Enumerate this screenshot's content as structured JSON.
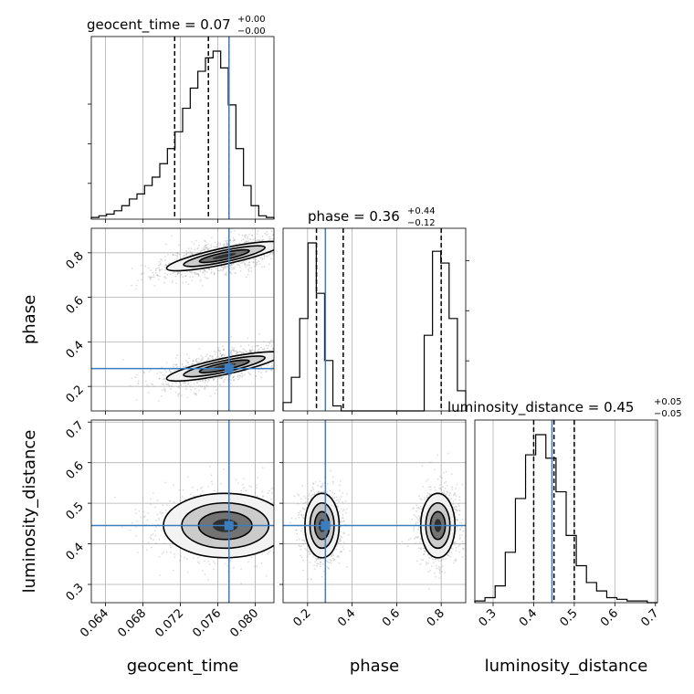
{
  "chart_data": {
    "type": "corner",
    "parameters": [
      "geocent_time",
      "phase",
      "luminosity_distance"
    ],
    "axis_labels": {
      "geocent_time": "geocent_time",
      "phase": "phase",
      "luminosity_distance": "luminosity_distance"
    },
    "titles": {
      "geocent_time": {
        "name": "geocent_time",
        "value": "0.07",
        "plus": "+0.00",
        "minus": "−0.00"
      },
      "phase": {
        "name": "phase",
        "value": "0.36",
        "plus": "+0.44",
        "minus": "−0.12"
      },
      "luminosity_distance": {
        "name": "luminosity_distance",
        "value": "0.45",
        "plus": "+0.05",
        "minus": "−0.05"
      }
    },
    "ranges": {
      "geocent_time": [
        0.0625,
        0.082
      ],
      "phase": [
        0.09,
        0.91
      ],
      "luminosity_distance": [
        0.255,
        0.705
      ]
    },
    "ticks": {
      "geocent_time": [
        "0.064",
        "0.068",
        "0.072",
        "0.076",
        "0.080"
      ],
      "phase": [
        "0.2",
        "0.4",
        "0.6",
        "0.8"
      ],
      "luminosity_distance": [
        "0.3",
        "0.4",
        "0.5",
        "0.6",
        "0.7"
      ]
    },
    "injection": {
      "geocent_time": 0.0772,
      "phase": 0.28,
      "luminosity_distance": 0.445
    },
    "quantiles": {
      "geocent_time": [
        0.0714,
        0.075,
        0.0772
      ],
      "phase": [
        0.24,
        0.36,
        0.8
      ],
      "luminosity_distance": [
        0.4,
        0.45,
        0.5
      ]
    },
    "histograms": {
      "geocent_time": [
        1,
        2,
        3,
        5,
        8,
        12,
        15,
        20,
        25,
        33,
        42,
        52,
        66,
        78,
        88,
        96,
        100,
        90,
        68,
        42,
        20,
        8,
        2,
        1
      ],
      "phase": [
        5,
        20,
        55,
        100,
        70,
        30,
        3,
        0,
        0,
        0,
        0,
        0,
        0,
        0,
        0,
        0,
        0,
        45,
        95,
        88,
        55,
        12
      ],
      "luminosity_distance": [
        1,
        3,
        10,
        30,
        62,
        88,
        100,
        86,
        66,
        40,
        22,
        12,
        7,
        3,
        2,
        1,
        1,
        0
      ]
    },
    "density_modes": {
      "geocent_time_vs_phase": [
        {
          "x": 0.0767,
          "y": 0.785,
          "sx": 0.0028,
          "sy": 0.03,
          "slope_dy_dx": 9.0
        },
        {
          "x": 0.0767,
          "y": 0.29,
          "sx": 0.0028,
          "sy": 0.03,
          "slope_dy_dx": 9.0
        }
      ],
      "geocent_time_vs_luminosity_distance": [
        {
          "x": 0.0768,
          "y": 0.445,
          "sx": 0.003,
          "sy": 0.036
        }
      ],
      "phase_vs_luminosity_distance": [
        {
          "x": 0.265,
          "y": 0.445,
          "sx": 0.035,
          "sy": 0.036
        },
        {
          "x": 0.785,
          "y": 0.445,
          "sx": 0.035,
          "sy": 0.036
        }
      ]
    },
    "grid": true
  }
}
